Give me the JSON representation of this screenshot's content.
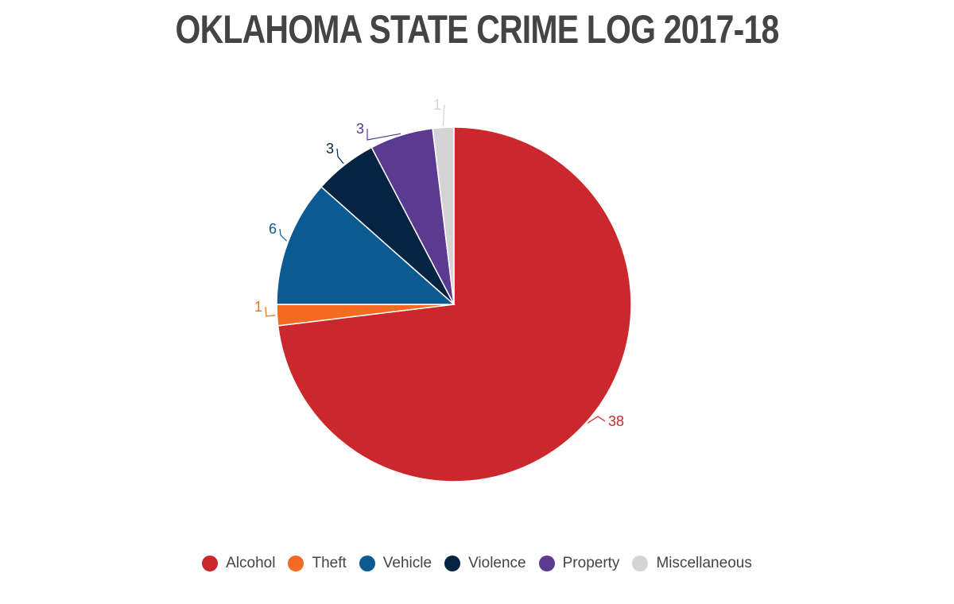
{
  "chart_data": {
    "type": "pie",
    "title": "OKLAHOMA STATE CRIME LOG 2017-18",
    "start_angle_deg": 0,
    "direction": "clockwise",
    "legend_position": "bottom",
    "slices": [
      {
        "label": "Alcohol",
        "value": 38,
        "color": "#cc272c"
      },
      {
        "label": "Theft",
        "value": 1,
        "color": "#f26b21"
      },
      {
        "label": "Vehicle",
        "value": 6,
        "color": "#0b5a92"
      },
      {
        "label": "Violence",
        "value": 3,
        "color": "#052444"
      },
      {
        "label": "Property",
        "value": 3,
        "color": "#5b3b91"
      },
      {
        "label": "Miscellaneous",
        "value": 1,
        "color": "#d4d4d4"
      }
    ]
  }
}
